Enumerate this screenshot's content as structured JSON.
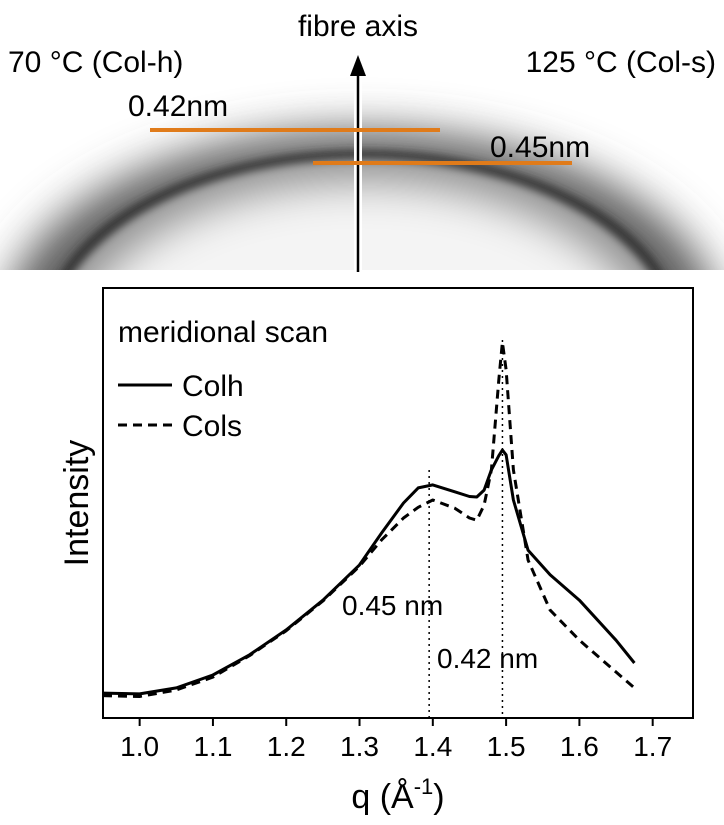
{
  "header": {
    "left_label": "70 °C (Col-h)",
    "axis_label": "fibre axis",
    "right_label": "125 °C (Col-s)",
    "spacing_labels": [
      "0.42nm",
      "0.45nm"
    ]
  },
  "chart_data": {
    "type": "line",
    "title": "meridional scan",
    "ylabel": "Intensity",
    "xlabel": [
      "q (Å",
      "-1",
      ")"
    ],
    "x": [
      0.95,
      1.0,
      1.05,
      1.1,
      1.15,
      1.2,
      1.25,
      1.3,
      1.33,
      1.36,
      1.38,
      1.4,
      1.43,
      1.45,
      1.46,
      1.47,
      1.48,
      1.49,
      1.495,
      1.5,
      1.51,
      1.53,
      1.56,
      1.6,
      1.65,
      1.675
    ],
    "series": [
      {
        "name": "Colh",
        "color": "#000000",
        "dash": false,
        "values": [
          5.8,
          5.6,
          7,
          10,
          14.7,
          20.5,
          27.4,
          35.6,
          43,
          50,
          53.5,
          54.2,
          52.6,
          51.5,
          51.4,
          53,
          57.7,
          61,
          62.3,
          61.2,
          50.7,
          39,
          33.3,
          27.4,
          18.1,
          12.8
        ]
      },
      {
        "name": "Cols",
        "color": "#000000",
        "dash": true,
        "values": [
          5.2,
          5.0,
          6.5,
          9.5,
          14.5,
          20.3,
          27.2,
          35.3,
          41.4,
          46.5,
          49,
          50.7,
          48.8,
          46.5,
          46,
          49.5,
          57.7,
          78.6,
          87.4,
          81,
          57.7,
          36.7,
          25.1,
          18.1,
          10.7,
          7
        ]
      }
    ],
    "annotations": [
      {
        "text": "0.45 nm",
        "x": 1.395
      },
      {
        "text": "0.42 nm",
        "x": 1.495
      }
    ],
    "xlim": [
      0.95,
      1.755
    ],
    "ylim": [
      0,
      100
    ],
    "xticks": [
      {
        "value": 1.0,
        "label": "1.0"
      },
      1.1,
      1.2,
      1.3,
      1.4,
      1.5,
      1.6,
      1.7
    ]
  }
}
